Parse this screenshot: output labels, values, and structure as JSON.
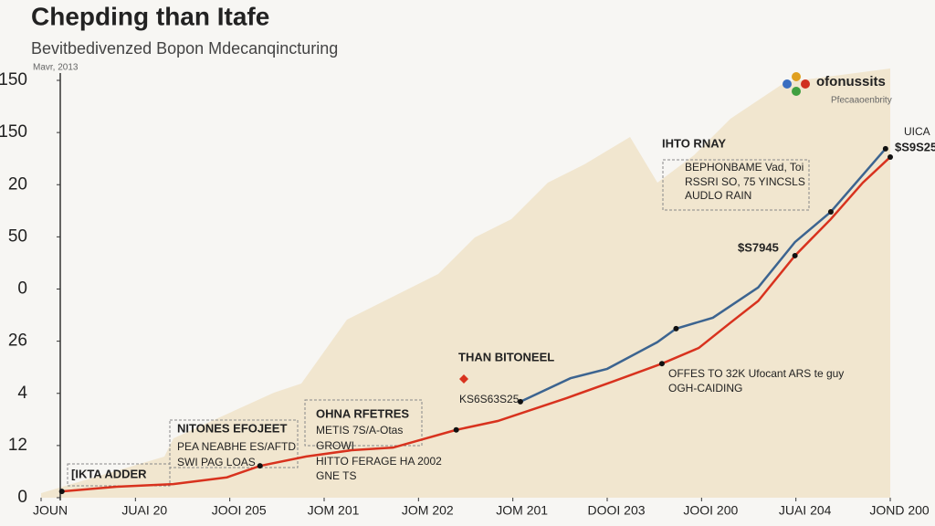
{
  "chart_data": {
    "type": "line",
    "title": "Chepding than Itafe",
    "subtitle": "Bevitbedivenzed Bopon Mdecanqincturing",
    "date": "Mavr, 2013",
    "logo": {
      "name": "ofonussits",
      "tagline": "Pfecaaoenbrity"
    },
    "xlim": [
      0,
      9
    ],
    "xticks": [
      {
        "value": 0,
        "label": "JOUN"
      },
      {
        "value": 1,
        "label": "JUAI 20"
      },
      {
        "value": 2,
        "label": "JOOI 205"
      },
      {
        "value": 3,
        "label": "JOM 201"
      },
      {
        "value": 4,
        "label": "JOM 202"
      },
      {
        "value": 5,
        "label": "JOM 201"
      },
      {
        "value": 6,
        "label": "DOOI 203"
      },
      {
        "value": 7,
        "label": "JOOI 200"
      },
      {
        "value": 8,
        "label": "JUAI 204"
      },
      {
        "value": 9,
        "label": "JOND 200"
      }
    ],
    "ylim": [
      0,
      8
    ],
    "yticks": [
      {
        "value": 0,
        "label": "0"
      },
      {
        "value": 1,
        "label": "12"
      },
      {
        "value": 2,
        "label": "4"
      },
      {
        "value": 3,
        "label": "26"
      },
      {
        "value": 4,
        "label": "0"
      },
      {
        "value": 5,
        "label": "50"
      },
      {
        "value": 6,
        "label": "20"
      },
      {
        "value": 7,
        "label": "150"
      },
      {
        "value": 8,
        "label": "150"
      }
    ],
    "series": [
      {
        "color": "#d8321e",
        "x": [
          0.22,
          0.8,
          1.4,
          1.97,
          2.32,
          2.81,
          3.29,
          3.73,
          4.4,
          4.84,
          5.57,
          6.05,
          6.58,
          6.97,
          7.31,
          7.6,
          7.99,
          8.37,
          8.71,
          9.0
        ],
        "values": [
          0.12,
          0.21,
          0.26,
          0.39,
          0.61,
          0.79,
          0.91,
          0.96,
          1.3,
          1.47,
          1.91,
          2.22,
          2.57,
          2.87,
          3.36,
          3.77,
          4.64,
          5.34,
          6.04,
          6.53
        ]
      },
      {
        "color": "#3c6490",
        "x": [
          5.08,
          5.61,
          6.0,
          6.53,
          6.73,
          7.12,
          7.6,
          7.99,
          8.37,
          8.95
        ],
        "values": [
          1.84,
          2.29,
          2.47,
          2.98,
          3.24,
          3.45,
          4.03,
          4.9,
          5.48,
          6.69
        ]
      }
    ],
    "annotations": [
      "IHTO RNAY",
      "BEPHONBAME Vad, Toi",
      "RSSRI SO, 75 YINCSLS",
      "AUDLO RAIN",
      "$S7945",
      "UICA",
      "$S9S25",
      "THAN BITONEEL",
      "KS6S63S25",
      "OFFES TO 32K Ufocant ARS te guy",
      "OGH-CAIDING",
      "OHNA RFETRES",
      "METIS 7S/A-Otas",
      "GROWI",
      "HITTO FERAGE HA 2002",
      "GNE TS",
      "NITONES EFOJEET",
      "PEA NEABHE ES/AFTD",
      "SWI PAG LOAS",
      "[IKTA ADDER"
    ]
  }
}
